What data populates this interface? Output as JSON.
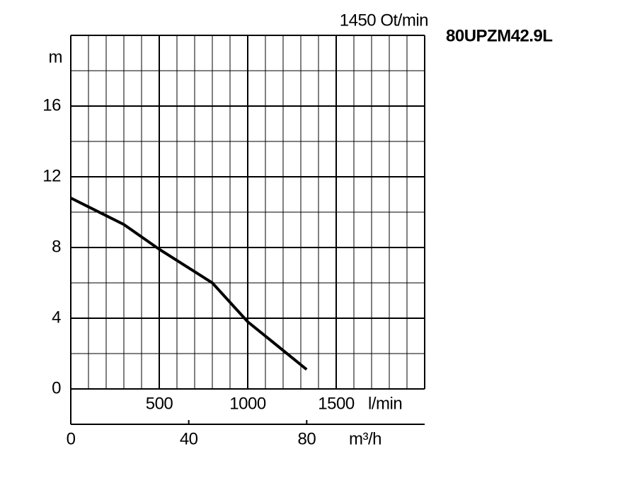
{
  "chart_data": {
    "type": "line",
    "title": "80UPZM42.9L",
    "subtitle": "1450 Ot/min",
    "ylabel": "m",
    "xlabel": "l/min",
    "x2label": "m³/h",
    "x": [
      0,
      300,
      500,
      800,
      1000,
      1333
    ],
    "series": [
      {
        "color": "#000000",
        "values": [
          10.8,
          9.3,
          7.9,
          6.0,
          3.8,
          1.1
        ]
      }
    ],
    "xlim": [
      0,
      2000
    ],
    "xticks": [
      500,
      1000,
      1500
    ],
    "minor_xticks": [
      100,
      200,
      300,
      400,
      600,
      700,
      800,
      900,
      1100,
      1200,
      1300,
      1400,
      1600,
      1700,
      1800,
      1900
    ],
    "x2lim": [
      0,
      120
    ],
    "x2ticks": [
      0,
      40,
      80
    ],
    "ylim": [
      0,
      20
    ],
    "yticks": [
      0,
      4,
      8,
      12,
      16
    ],
    "minor_yticks": [
      2,
      6,
      10,
      14,
      18
    ],
    "grid": true
  }
}
